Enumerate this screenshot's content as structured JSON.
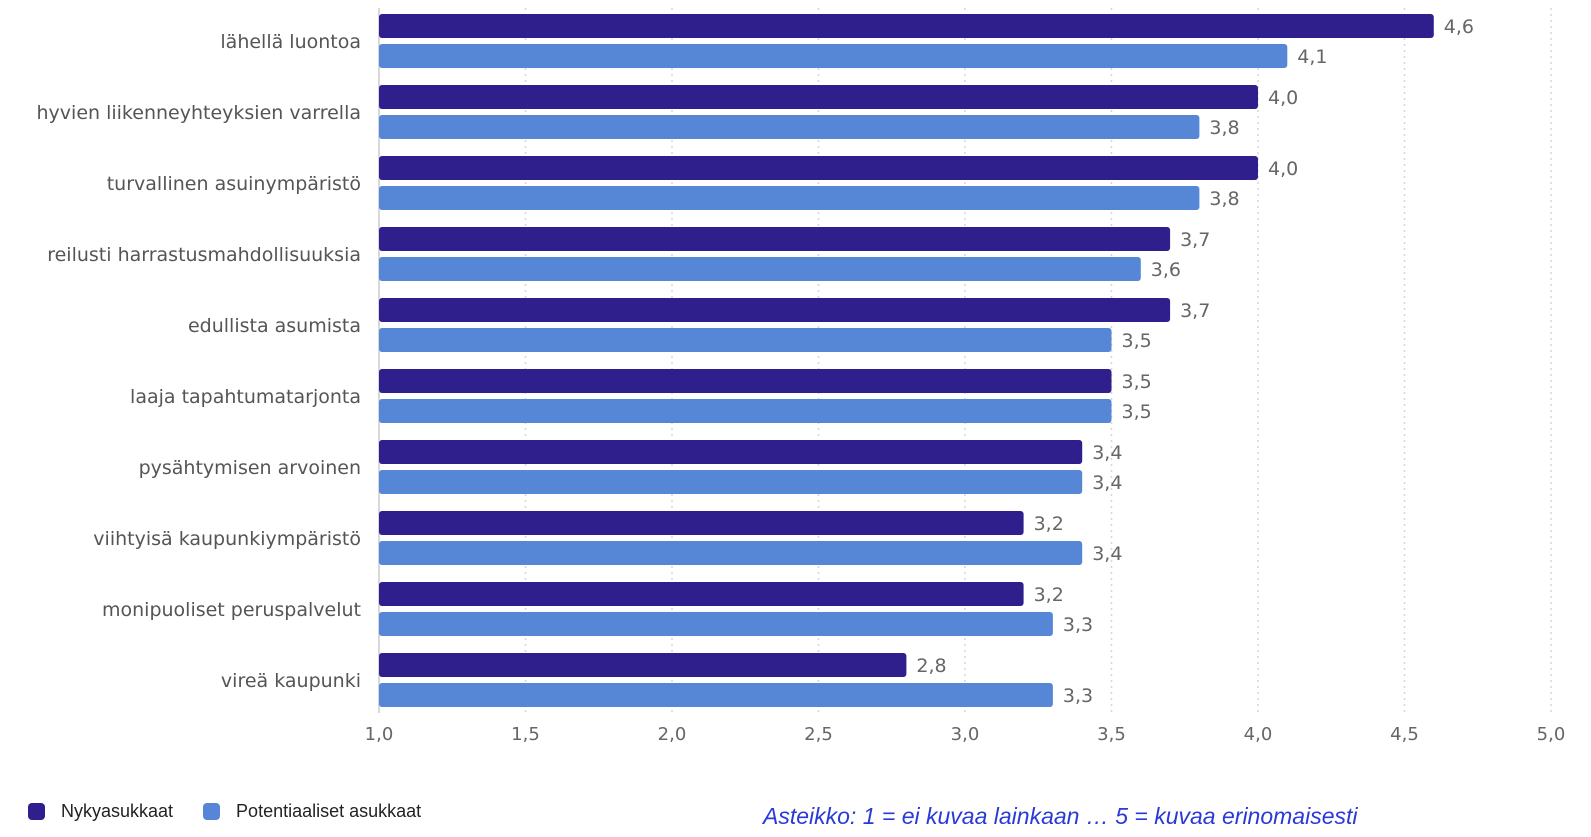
{
  "colors": {
    "current": "#2e1f8c",
    "potential": "#5587d6",
    "grid": "#d6d6d6",
    "axis": "#cccccc",
    "note": "#2a3ad6"
  },
  "legend": {
    "current_label": "Nykyasukkaat",
    "potential_label": "Potentiaaliset asukkaat"
  },
  "note": {
    "text": "Asteikko: 1 = ei kuvaa lainkaan … 5 = kuvaa erinomaisesti"
  },
  "chart_data": {
    "type": "bar",
    "orientation": "horizontal",
    "categories": [
      "lähellä luontoa",
      "hyvien liikenneyhteyksien varrella",
      "turvallinen asuinympäristö",
      "reilusti harrastusmahdollisuuksia",
      "edullista asumista",
      "laaja tapahtumatarjonta",
      "pysähtymisen arvoinen",
      "viihtyisä kaupunkiympäristö",
      "monipuoliset peruspalvelut",
      "vireä kaupunki"
    ],
    "series": [
      {
        "name": "Nykyasukkaat",
        "values": [
          4.6,
          4.0,
          4.0,
          3.7,
          3.7,
          3.5,
          3.4,
          3.2,
          3.2,
          2.8
        ],
        "labels": [
          "4,6",
          "4,0",
          "4,0",
          "3,7",
          "3,7",
          "3,5",
          "3,4",
          "3,2",
          "3,2",
          "2,8"
        ]
      },
      {
        "name": "Potentiaaliset asukkaat",
        "values": [
          4.1,
          3.8,
          3.8,
          3.6,
          3.5,
          3.5,
          3.4,
          3.4,
          3.3,
          3.3
        ],
        "labels": [
          "4,1",
          "3,8",
          "3,8",
          "3,6",
          "3,5",
          "3,5",
          "3,4",
          "3,4",
          "3,3",
          "3,3"
        ]
      }
    ],
    "xlim": [
      1.0,
      5.0
    ],
    "xticks": [
      1.0,
      1.5,
      2.0,
      2.5,
      3.0,
      3.5,
      4.0,
      4.5,
      5.0
    ],
    "xtick_labels": [
      "1,0",
      "1,5",
      "2,0",
      "2,5",
      "3,0",
      "3,5",
      "4,0",
      "4,5",
      "5,0"
    ],
    "grid": true,
    "legend_position": "bottom-left"
  }
}
